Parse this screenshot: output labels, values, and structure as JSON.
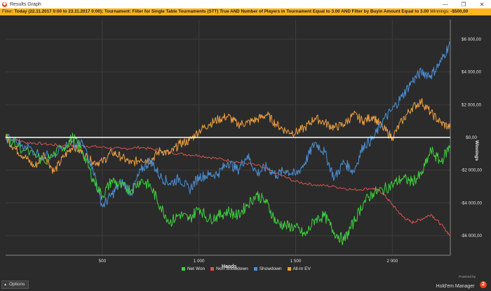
{
  "window": {
    "title": "Results Graph",
    "icon": "app-logo-icon",
    "controls": [
      "minimize-icon",
      "restore-icon",
      "close-icon"
    ]
  },
  "filter": {
    "prefix": "Filter:",
    "text": "Today (22.11.2017 0:00 to 23.11.2017 0:00); Tournament: Filter for Single Table Tournaments (STT) True AND Number of Players in Tournament Equal to 3.00 AND Filter by Buyin Amount Equal to 3.00",
    "winnings_label": "Winnings:",
    "winnings_value": "-$500,00",
    "background": "#ffb51c"
  },
  "bottom": {
    "options_label": "Options",
    "powered_by": "Powered by",
    "brand_name": "Hold'em Manager",
    "brand_badge": "2"
  },
  "chart_data": {
    "type": "line",
    "xlabel": "Hands",
    "ylabel": "Winnings",
    "xlim": [
      0,
      2300
    ],
    "ylim": [
      -7200,
      7200
    ],
    "x_ticks": [
      500,
      1000,
      1500,
      2000
    ],
    "x_tick_labels": [
      "500",
      "1 000",
      "1 500",
      "2 000"
    ],
    "y_ticks": [
      -6000,
      -4000,
      -2000,
      0,
      2000,
      4000,
      6000
    ],
    "y_tick_labels": [
      "-$6 000,00",
      "-$4 000,00",
      "-$2 000,00",
      "$0,00",
      "$2 000,00",
      "$4 000,00",
      "$6 000,00"
    ],
    "grid": true,
    "legend_position": "bottom-center",
    "series": [
      {
        "name": "Net Won",
        "color": "#3fcf3f",
        "x": [
          0,
          100,
          200,
          300,
          350,
          400,
          450,
          500,
          550,
          600,
          650,
          700,
          750,
          800,
          850,
          900,
          950,
          1000,
          1050,
          1100,
          1150,
          1200,
          1250,
          1300,
          1350,
          1400,
          1450,
          1500,
          1550,
          1600,
          1650,
          1700,
          1750,
          1800,
          1850,
          1900,
          1950,
          2000,
          2050,
          2100,
          2150,
          2200,
          2250,
          2300
        ],
        "y": [
          0,
          -800,
          -1500,
          -600,
          0,
          -900,
          -2500,
          -3600,
          -2600,
          -3000,
          -3200,
          -2600,
          -3000,
          -4200,
          -5200,
          -4700,
          -5000,
          -4300,
          -5000,
          -4800,
          -4500,
          -4800,
          -4100,
          -3500,
          -4000,
          -5200,
          -5400,
          -5500,
          -6000,
          -5000,
          -4800,
          -5800,
          -6300,
          -5200,
          -4000,
          -3400,
          -3200,
          -2900,
          -2500,
          -2700,
          -2300,
          -800,
          -1500,
          -500
        ]
      },
      {
        "name": "Non Showdown",
        "color": "#d9534f",
        "x": [
          0,
          100,
          200,
          300,
          400,
          500,
          600,
          700,
          800,
          900,
          1000,
          1100,
          1200,
          1300,
          1400,
          1500,
          1600,
          1700,
          1800,
          1900,
          1950,
          2000,
          2050,
          2100,
          2150,
          2200,
          2250,
          2300
        ],
        "y": [
          0,
          -300,
          -400,
          -500,
          -500,
          -600,
          -700,
          -600,
          -800,
          -1000,
          -1100,
          -1300,
          -1500,
          -1700,
          -2200,
          -2700,
          -2900,
          -3000,
          -3200,
          -3100,
          -3400,
          -4100,
          -4800,
          -5200,
          -5000,
          -4700,
          -5300,
          -6000
        ]
      },
      {
        "name": "Showdown",
        "color": "#4a8fd4",
        "x": [
          0,
          100,
          200,
          300,
          400,
          450,
          500,
          550,
          600,
          650,
          700,
          750,
          800,
          850,
          900,
          950,
          1000,
          1050,
          1100,
          1150,
          1200,
          1250,
          1300,
          1350,
          1400,
          1450,
          1500,
          1550,
          1600,
          1650,
          1700,
          1750,
          1800,
          1850,
          1900,
          1950,
          2000,
          2050,
          2100,
          2150,
          2200,
          2250,
          2300
        ],
        "y": [
          0,
          -500,
          -1200,
          -600,
          -400,
          -1800,
          -4200,
          -3500,
          -2700,
          -3400,
          -2000,
          -1400,
          -2400,
          -2800,
          -2500,
          -3200,
          -2400,
          -2300,
          -2200,
          -1500,
          -2000,
          -1100,
          -2200,
          -1800,
          -2300,
          -2000,
          -2300,
          -1500,
          -300,
          -900,
          -2500,
          -1500,
          -2100,
          -500,
          -100,
          1000,
          1700,
          2500,
          3400,
          4000,
          3800,
          4600,
          5800
        ]
      },
      {
        "name": "All-In EV",
        "color": "#f0a040",
        "x": [
          0,
          50,
          100,
          150,
          200,
          250,
          300,
          350,
          400,
          450,
          500,
          550,
          600,
          650,
          700,
          750,
          800,
          850,
          900,
          950,
          1000,
          1050,
          1100,
          1150,
          1200,
          1250,
          1300,
          1350,
          1400,
          1450,
          1500,
          1550,
          1600,
          1650,
          1700,
          1750,
          1800,
          1850,
          1900,
          1950,
          2000,
          2050,
          2100,
          2150,
          2200,
          2250,
          2300
        ],
        "y": [
          0,
          -700,
          -1200,
          -1800,
          -1000,
          -2100,
          -1200,
          -500,
          -1000,
          -1500,
          -1500,
          -900,
          -1200,
          -1600,
          -1300,
          -1400,
          -800,
          -1000,
          -400,
          -200,
          400,
          800,
          1100,
          1300,
          800,
          900,
          1100,
          1400,
          800,
          400,
          300,
          600,
          1200,
          900,
          600,
          800,
          1400,
          1000,
          1300,
          600,
          0,
          1000,
          1800,
          2200,
          1500,
          900,
          600
        ]
      }
    ]
  }
}
